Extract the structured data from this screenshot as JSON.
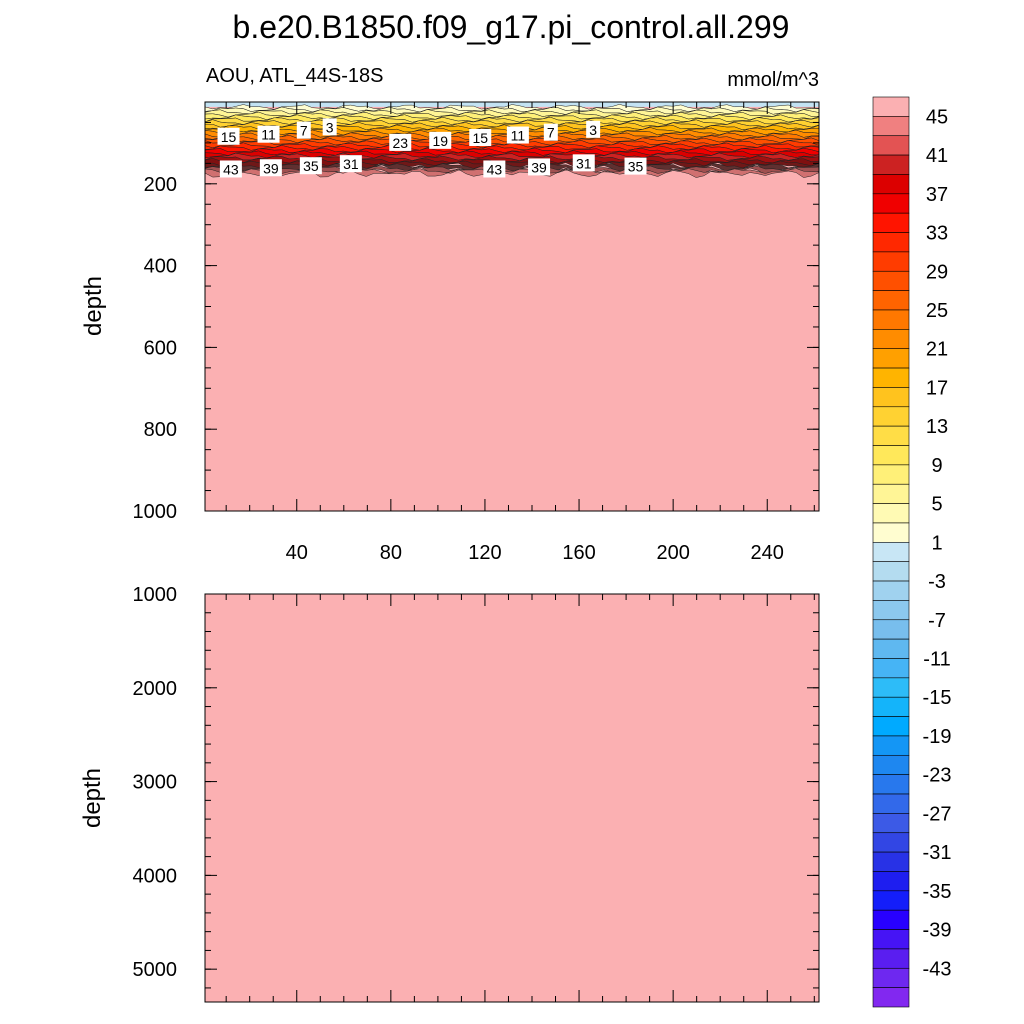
{
  "title": "b.e20.B1850.f09_g17.pi_control.all.299",
  "subtitle_left": "AOU, ATL_44S-18S",
  "subtitle_right": "mmol/m^3",
  "chart_data": [
    {
      "type": "heatmap",
      "panel": "upper",
      "ylabel": "depth",
      "ylim": [
        1000,
        0
      ],
      "y_ticks": [
        "200",
        "400",
        "600",
        "800",
        "1000"
      ],
      "x_ticks": [
        "40",
        "80",
        "120",
        "160",
        "200",
        "240"
      ],
      "xlim": [
        1,
        262
      ],
      "contour_labels": [
        {
          "text": "15",
          "x": 11,
          "depth": 85
        },
        {
          "text": "11",
          "x": 28,
          "depth": 80
        },
        {
          "text": "7",
          "x": 43,
          "depth": 70
        },
        {
          "text": "3",
          "x": 54,
          "depth": 62
        },
        {
          "text": "43",
          "x": 12,
          "depth": 165
        },
        {
          "text": "39",
          "x": 29,
          "depth": 162
        },
        {
          "text": "35",
          "x": 46,
          "depth": 157
        },
        {
          "text": "31",
          "x": 63,
          "depth": 152
        },
        {
          "text": "23",
          "x": 84,
          "depth": 100
        },
        {
          "text": "19",
          "x": 101,
          "depth": 95
        },
        {
          "text": "15",
          "x": 118,
          "depth": 88
        },
        {
          "text": "11",
          "x": 134,
          "depth": 82
        },
        {
          "text": "7",
          "x": 148,
          "depth": 75
        },
        {
          "text": "3",
          "x": 166,
          "depth": 68
        },
        {
          "text": "43",
          "x": 124,
          "depth": 165
        },
        {
          "text": "39",
          "x": 143,
          "depth": 160
        },
        {
          "text": "31",
          "x": 162,
          "depth": 150
        },
        {
          "text": "35",
          "x": 184,
          "depth": 158
        }
      ]
    },
    {
      "type": "heatmap",
      "panel": "lower",
      "ylabel": "depth",
      "ylim": [
        5350,
        1000
      ],
      "y_ticks": [
        "1000",
        "2000",
        "3000",
        "4000",
        "5000"
      ],
      "xlim": [
        1,
        262
      ]
    }
  ],
  "colorbar": {
    "labels": [
      "45",
      "41",
      "37",
      "33",
      "29",
      "25",
      "21",
      "17",
      "13",
      "9",
      "5",
      "1",
      "-3",
      "-7",
      "-11",
      "-15",
      "-19",
      "-23",
      "-27",
      "-31",
      "-35",
      "-39",
      "-43"
    ],
    "colors": [
      "#fbb0b2",
      "#f08080",
      "#e35353",
      "#cc2222",
      "#dc0000",
      "#f00000",
      "#ff1400",
      "#ff2800",
      "#ff3c00",
      "#ff5000",
      "#ff6400",
      "#ff7800",
      "#ff8c00",
      "#ffa000",
      "#ffb400",
      "#ffc31e",
      "#ffd232",
      "#ffdd46",
      "#ffe85a",
      "#fff078",
      "#fff596",
      "#fffab4",
      "#fffdd0",
      "#c8e6f5",
      "#b4dcf0",
      "#a0d2ef",
      "#8cc8ee",
      "#78beed",
      "#5fb8f0",
      "#46b4f5",
      "#2dbcf8",
      "#14b4fa",
      "#00aaff",
      "#1496f5",
      "#1e87f0",
      "#2878ed",
      "#3269ea",
      "#3c5ae6",
      "#3246e4",
      "#2832e6",
      "#1e1ef0",
      "#141efa",
      "#2800ff",
      "#4614f5",
      "#5a1ef0",
      "#6e28f0",
      "#8228f0"
    ]
  },
  "colors": {
    "deep_fill": "#fbb0b2",
    "surface_band": "#c3e3f3"
  }
}
